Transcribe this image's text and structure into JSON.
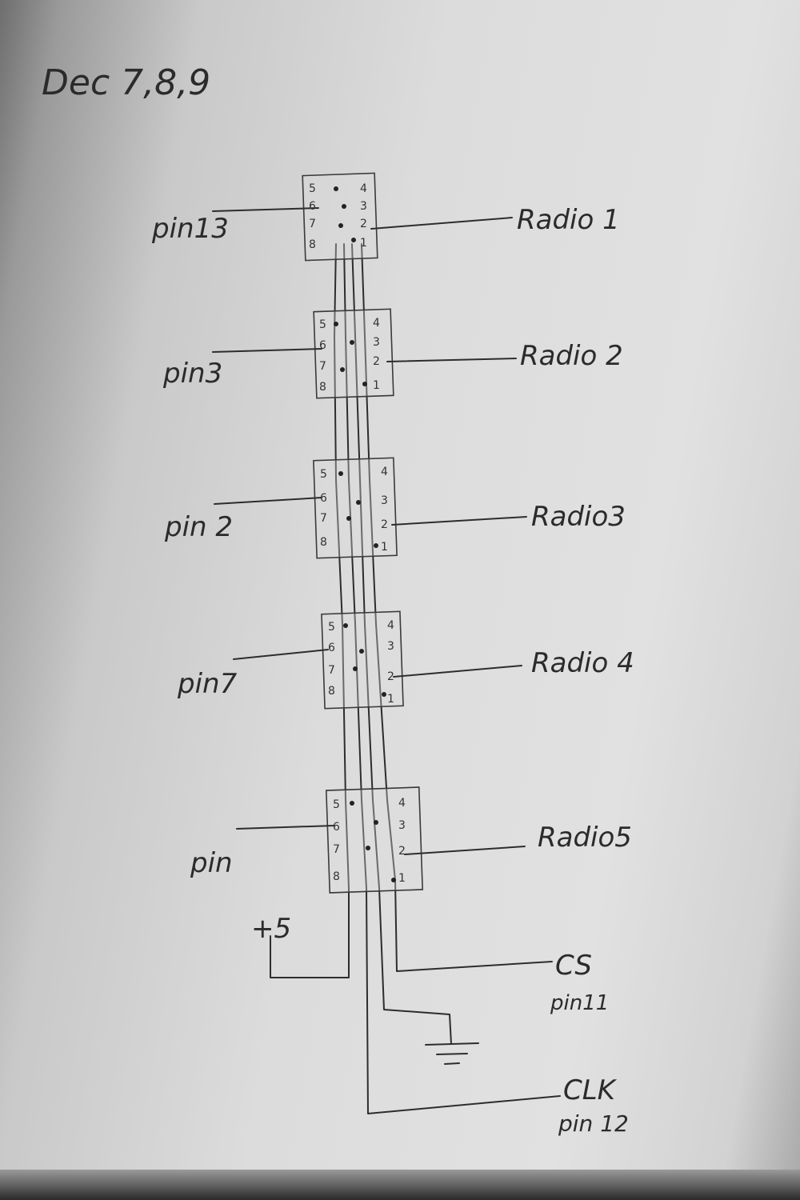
{
  "date": "Dec 7,8,9",
  "modules": [
    {
      "pin_label": "pin13",
      "radio_label": "Radio 1"
    },
    {
      "pin_label": "pin3",
      "radio_label": "Radio 2"
    },
    {
      "pin_label": "pin 2",
      "radio_label": "Radio3"
    },
    {
      "pin_label": "pin7",
      "radio_label": "Radio 4"
    },
    {
      "pin_label": "pin",
      "radio_label": "Radio5"
    }
  ],
  "pin_numbers_left": [
    "5",
    "6",
    "7",
    "8"
  ],
  "pin_numbers_right": [
    "4",
    "3",
    "2",
    "1"
  ],
  "power": {
    "label": "+5"
  },
  "cs": {
    "label": "CS",
    "pin": "pin11"
  },
  "clk": {
    "label": "CLK",
    "pin": "pin 12"
  },
  "ground": {
    "icon": "ground-symbol"
  }
}
